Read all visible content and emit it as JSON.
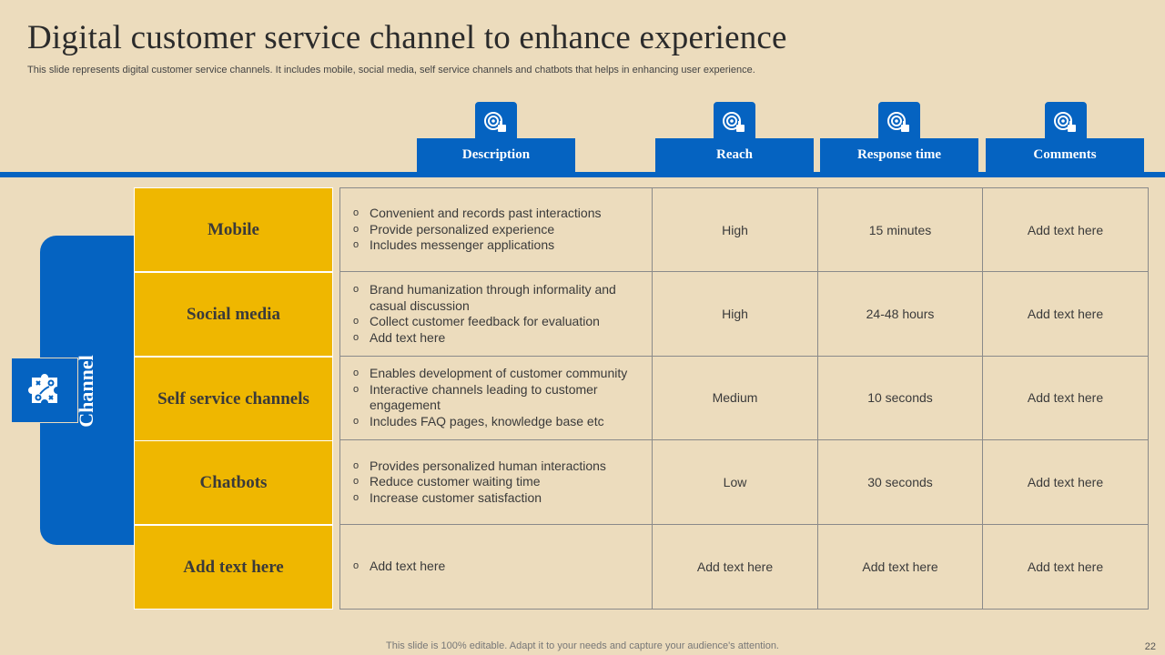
{
  "title": "Digital customer service channel to enhance experience",
  "subtitle": "This slide represents digital customer service channels. It includes mobile, social media, self service channels and chatbots that helps in enhancing user experience.",
  "headers": [
    "Description",
    "Reach",
    "Response time",
    "Comments"
  ],
  "header_icon": "target-thumbs-up-icon",
  "channel_label": "Channel",
  "channel_icon": "strategy-puzzle-icon",
  "rows": [
    {
      "channel": "Mobile",
      "description": [
        "Convenient and records past interactions",
        "Provide personalized experience",
        "Includes messenger applications"
      ],
      "reach": "High",
      "response": "15 minutes",
      "comments": "Add text here"
    },
    {
      "channel": "Social media",
      "description": [
        "Brand humanization through informality and casual discussion",
        "Collect customer feedback for evaluation",
        "Add text here"
      ],
      "reach": "High",
      "response": "24-48 hours",
      "comments": "Add text here"
    },
    {
      "channel": "Self service channels",
      "description": [
        "Enables development of customer community",
        "Interactive channels leading to customer engagement",
        "Includes FAQ pages, knowledge base etc"
      ],
      "reach": "Medium",
      "response": "10 seconds",
      "comments": "Add text here"
    },
    {
      "channel": "Chatbots",
      "description": [
        "Provides personalized human interactions",
        "Reduce customer waiting time",
        "Increase customer satisfaction"
      ],
      "reach": "Low",
      "response": "30 seconds",
      "comments": "Add text here"
    },
    {
      "channel": "Add text here",
      "description": [
        "Add text here"
      ],
      "reach": "Add text here",
      "response": "Add text here",
      "comments": "Add text here"
    }
  ],
  "footer": "This slide is 100% editable. Adapt it to your needs and capture your audience's attention.",
  "page_number": "22",
  "colors": {
    "background": "#ecdcbd",
    "accent_blue": "#0563c1",
    "channel_yellow": "#efb700"
  }
}
